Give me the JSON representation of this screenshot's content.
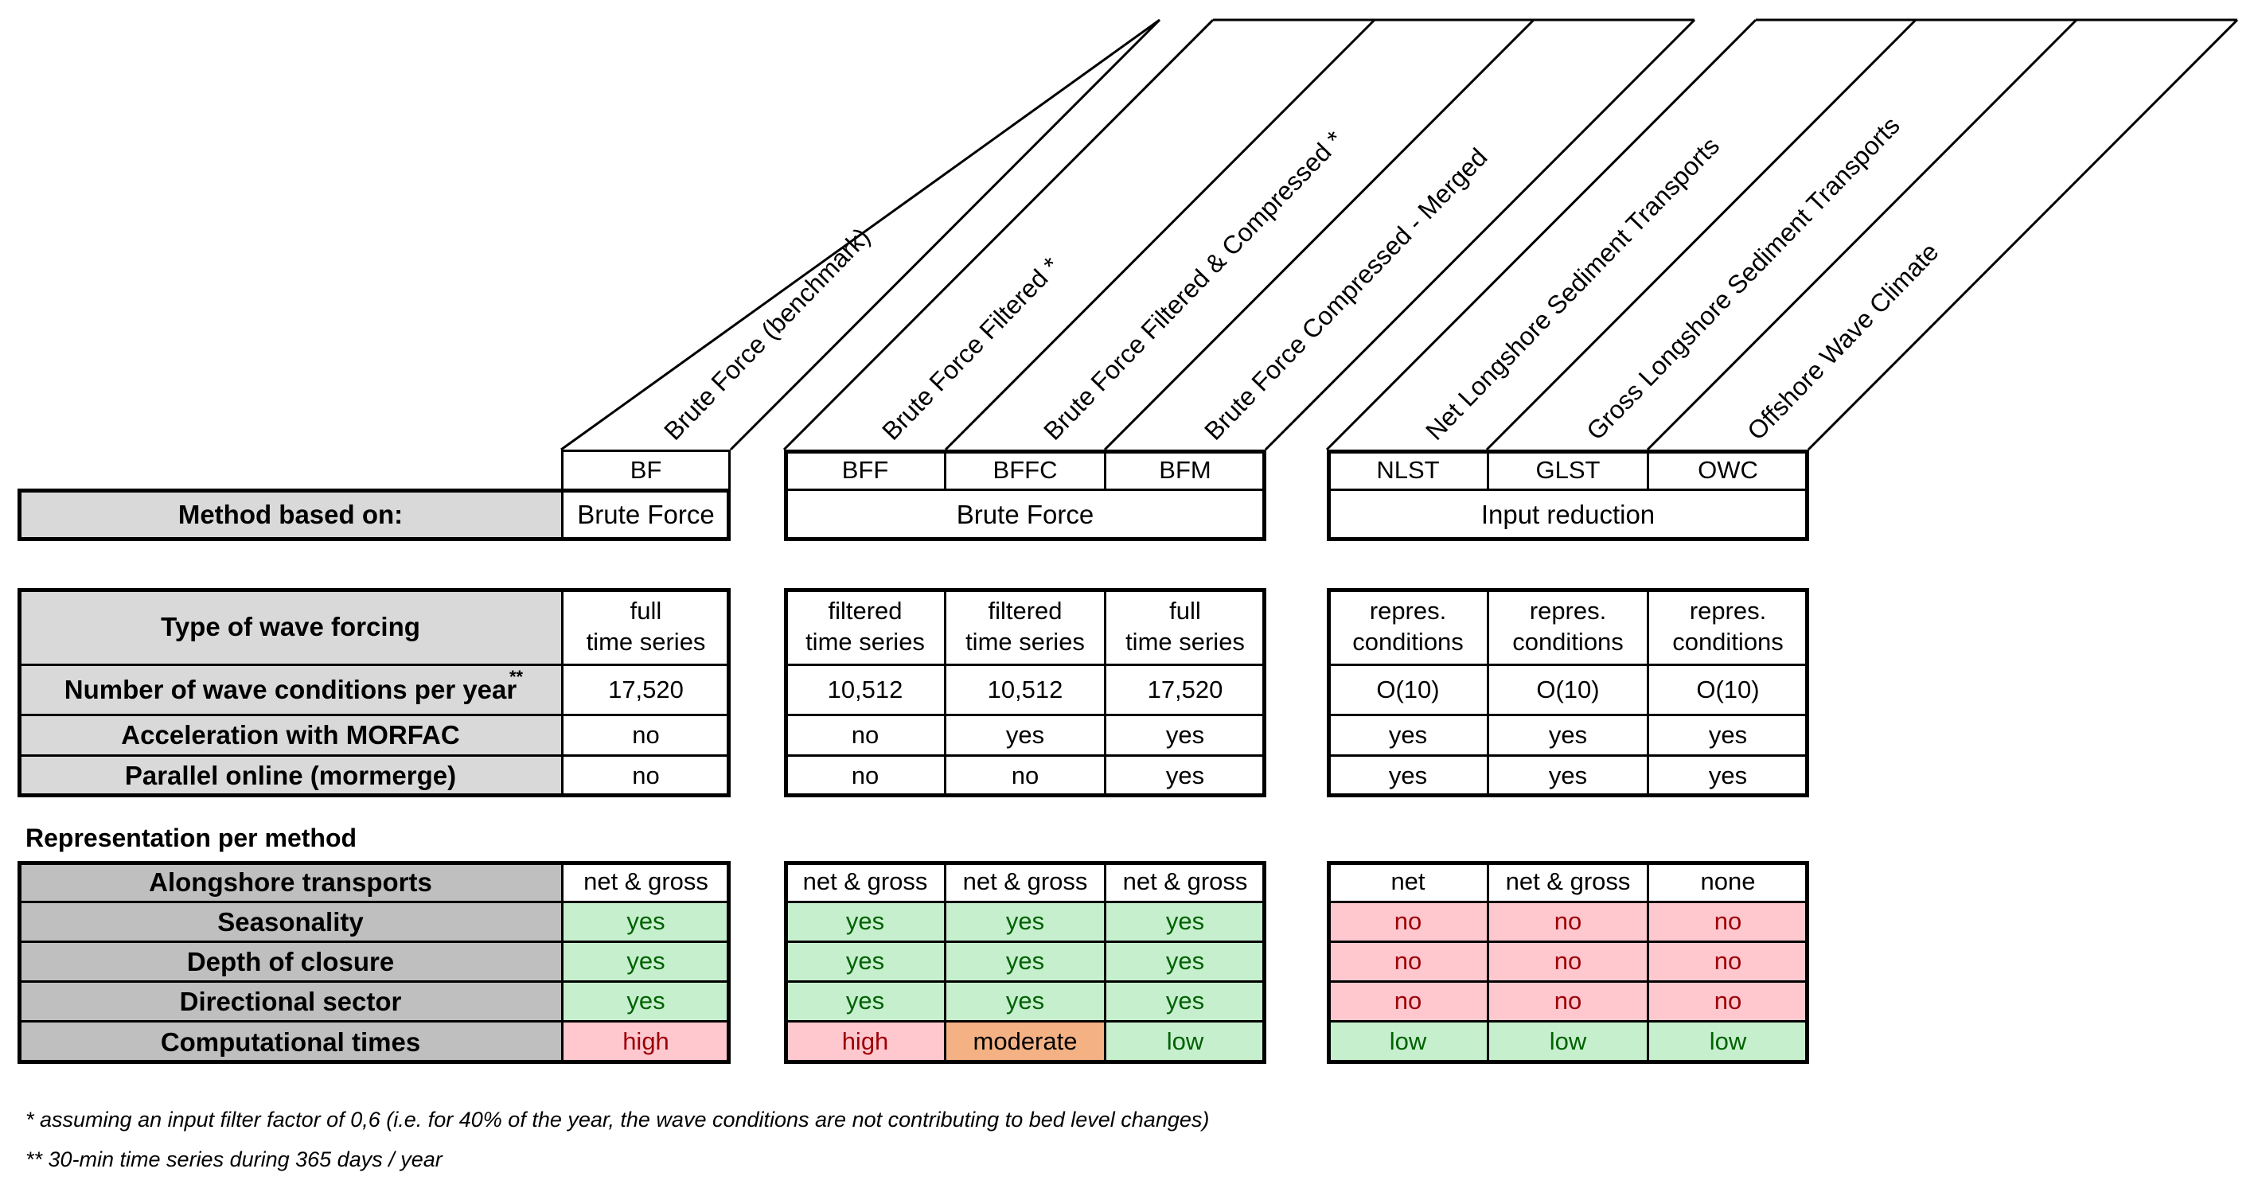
{
  "column_headers": [
    {
      "label": "Brute Force (benchmark)"
    },
    {
      "label": "Brute Force Filtered *"
    },
    {
      "label": "Brute Force Filtered & Compressed *"
    },
    {
      "label": "Brute Force Compressed - Merged"
    },
    {
      "label": "Net Longshore Sediment Transports"
    },
    {
      "label": "Gross Longshore Sediment Transports"
    },
    {
      "label": "Offshore Wave Climate"
    }
  ],
  "codes": [
    "BF",
    "BFF",
    "BFFC",
    "BFM",
    "NLST",
    "GLST",
    "OWC"
  ],
  "method_based_on": {
    "label": "Method based on:",
    "groups": [
      "Brute Force",
      "Brute Force",
      "Input reduction"
    ]
  },
  "wave_forcing": {
    "label": "Type of wave forcing",
    "values": [
      "full\ntime series",
      "filtered\ntime series",
      "filtered\ntime series",
      "full\ntime series",
      "repres.\nconditions",
      "repres.\nconditions",
      "repres.\nconditions"
    ]
  },
  "num_conditions": {
    "label": "Number of wave conditions per year",
    "footnote_mark": "**",
    "values": [
      "17,520",
      "10,512",
      "10,512",
      "17,520",
      "O(10)",
      "O(10)",
      "O(10)"
    ]
  },
  "morfac": {
    "label": "Acceleration with MORFAC",
    "values": [
      "no",
      "no",
      "yes",
      "yes",
      "yes",
      "yes",
      "yes"
    ]
  },
  "parallel": {
    "label": "Parallel online (mormerge)",
    "values": [
      "no",
      "no",
      "no",
      "yes",
      "yes",
      "yes",
      "yes"
    ]
  },
  "representation": {
    "title": "Representation per method",
    "rows": [
      {
        "label": "Alongshore transports",
        "values": [
          "net & gross",
          "net & gross",
          "net & gross",
          "net & gross",
          "net",
          "net & gross",
          "none"
        ],
        "status": [
          "n",
          "n",
          "n",
          "n",
          "n",
          "n",
          "n"
        ]
      },
      {
        "label": "Seasonality",
        "values": [
          "yes",
          "yes",
          "yes",
          "yes",
          "no",
          "no",
          "no"
        ],
        "status": [
          "g",
          "g",
          "g",
          "g",
          "r",
          "r",
          "r"
        ]
      },
      {
        "label": "Depth of closure",
        "values": [
          "yes",
          "yes",
          "yes",
          "yes",
          "no",
          "no",
          "no"
        ],
        "status": [
          "g",
          "g",
          "g",
          "g",
          "r",
          "r",
          "r"
        ]
      },
      {
        "label": "Directional sector",
        "values": [
          "yes",
          "yes",
          "yes",
          "yes",
          "no",
          "no",
          "no"
        ],
        "status": [
          "g",
          "g",
          "g",
          "g",
          "r",
          "r",
          "r"
        ]
      },
      {
        "label": "Computational times",
        "values": [
          "high",
          "high",
          "moderate",
          "low",
          "low",
          "low",
          "low"
        ],
        "status": [
          "r",
          "r",
          "o",
          "g",
          "g",
          "g",
          "g"
        ]
      }
    ]
  },
  "notes": [
    "* assuming an input filter factor of 0,6 (i.e. for 40% of the year, the wave conditions are not contributing to bed level changes)",
    "** 30-min time series during 365 days / year"
  ],
  "colors": {
    "green_fill": "#c6efce",
    "green_text": "#006100",
    "red_fill": "#ffc7ce",
    "red_text": "#9c0006",
    "orange_fill": "#f4b183",
    "label_fill": "#d9d9d9",
    "label_fill_dark": "#bfbfbf"
  }
}
